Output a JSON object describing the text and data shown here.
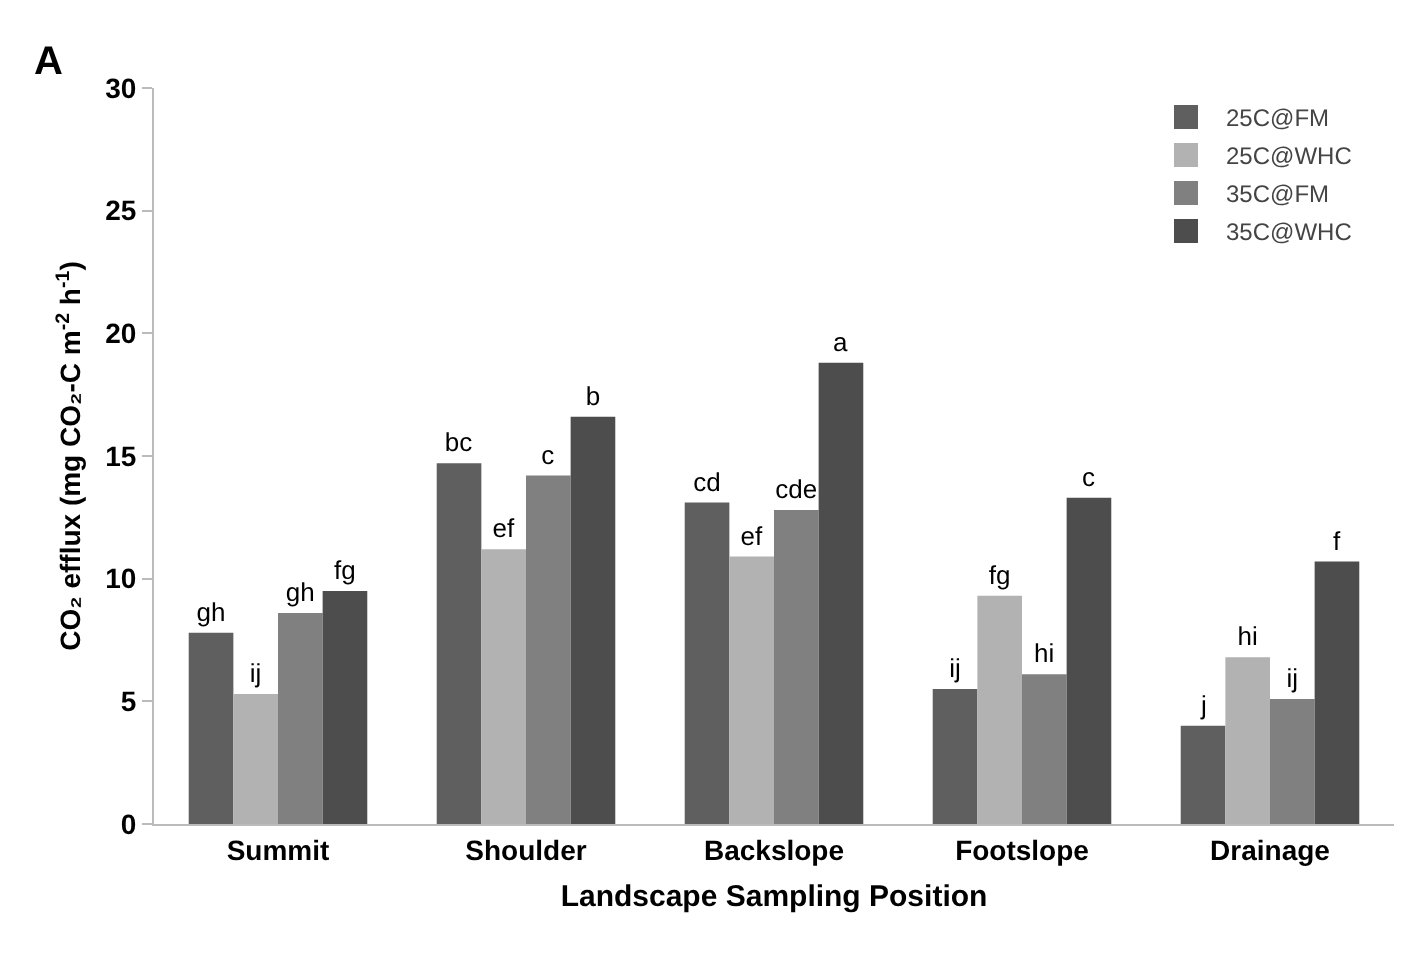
{
  "chart_data": {
    "type": "bar",
    "xlabel": "Landscape Sampling Position",
    "ylabel": "CO₂ efflux (mg CO₂-C m$^{-2}$ h$^{-1}$)",
    "annotations": [
      "A"
    ],
    "categories": [
      "Summit",
      "Shoulder",
      "Backslope",
      "Footslope",
      "Drainage"
    ],
    "series": [
      {
        "name": "25C@FM",
        "color": "#5f5f5f",
        "values": [
          7.8,
          14.7,
          13.1,
          5.5,
          4.0
        ],
        "value_labels": [
          "gh",
          "bc",
          "cd",
          "ij",
          "j"
        ]
      },
      {
        "name": "25C@WHC",
        "color": "#b2b2b2",
        "values": [
          5.3,
          11.2,
          10.9,
          9.3,
          6.8
        ],
        "value_labels": [
          "ij",
          "ef",
          "ef",
          "fg",
          "hi"
        ]
      },
      {
        "name": "35C@FM",
        "color": "#808080",
        "values": [
          8.6,
          14.2,
          12.8,
          6.1,
          5.1
        ],
        "value_labels": [
          "gh",
          "c",
          "cde",
          "hi",
          "ij"
        ]
      },
      {
        "name": "35C@WHC",
        "color": "#4d4d4d",
        "values": [
          9.5,
          16.6,
          18.8,
          13.3,
          10.7
        ],
        "value_labels": [
          "fg",
          "b",
          "a",
          "c",
          "f"
        ]
      }
    ],
    "ylim": [
      0,
      30
    ],
    "yticks": [
      0,
      5,
      10,
      15,
      20,
      25,
      30
    ],
    "grid": false,
    "legend": "top right"
  }
}
